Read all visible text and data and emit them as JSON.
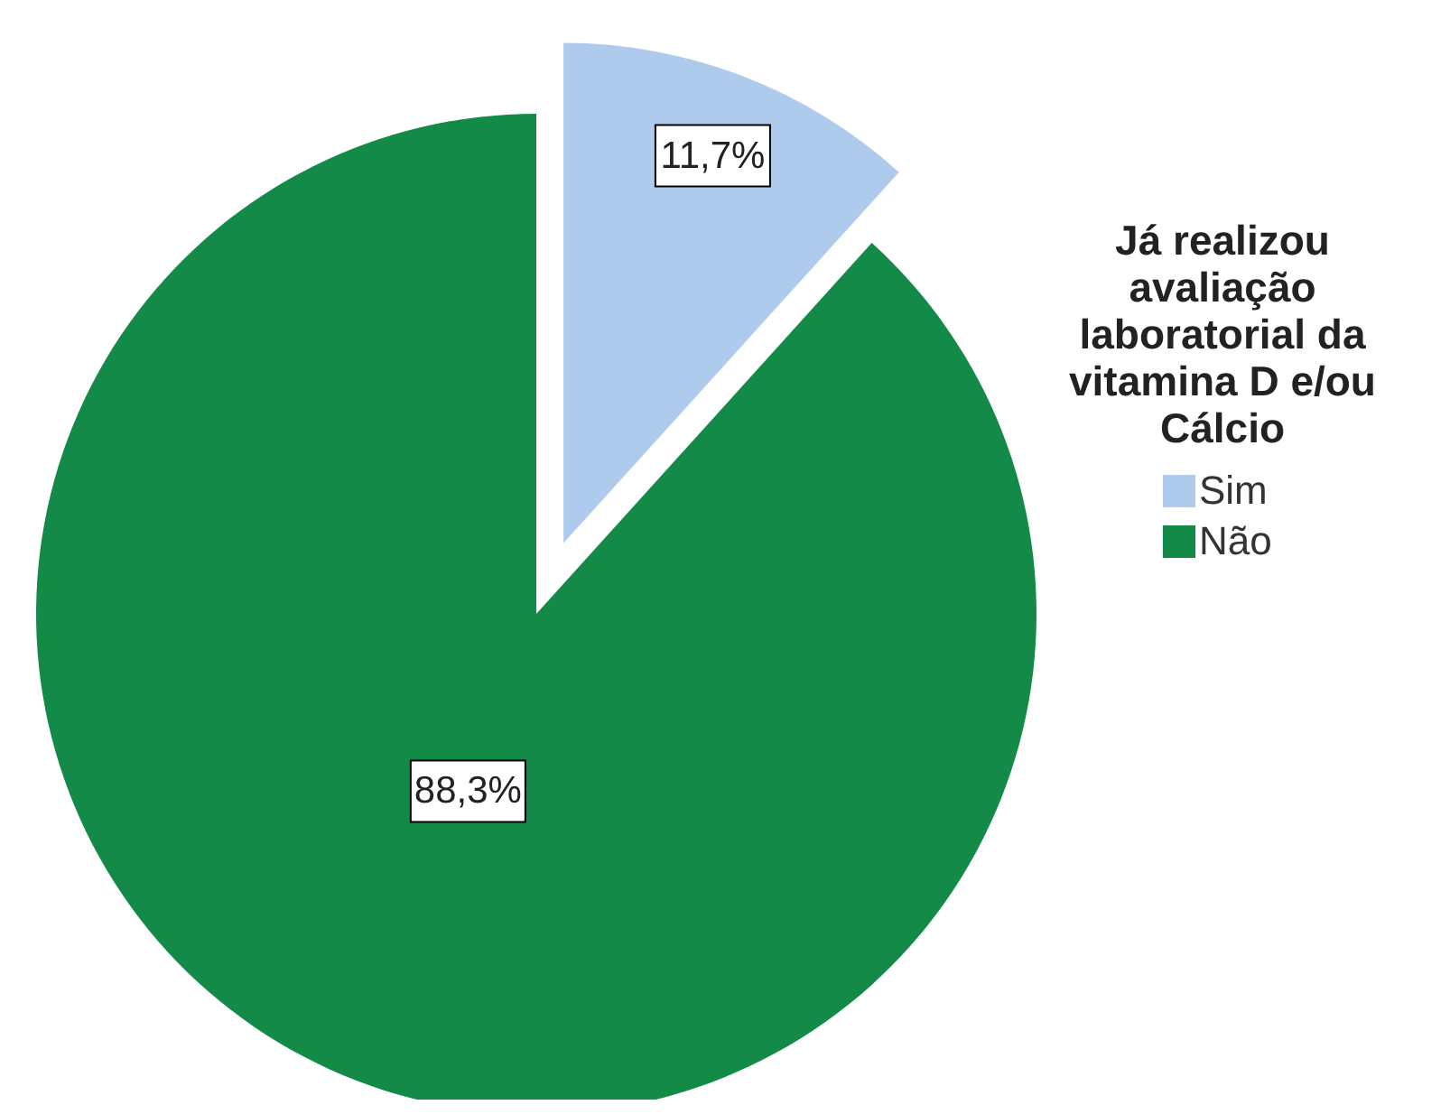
{
  "chart_data": {
    "type": "pie",
    "categories": [
      "Sim",
      "Não"
    ],
    "values": [
      11.7,
      88.3
    ],
    "colors": [
      "#aecbee",
      "#138a48"
    ],
    "value_labels": [
      "11,7%",
      "88,3%"
    ],
    "legend_title": "Já realizou avaliação laboratorial da vitamina D e/ou Cálcio",
    "legend": "right"
  }
}
